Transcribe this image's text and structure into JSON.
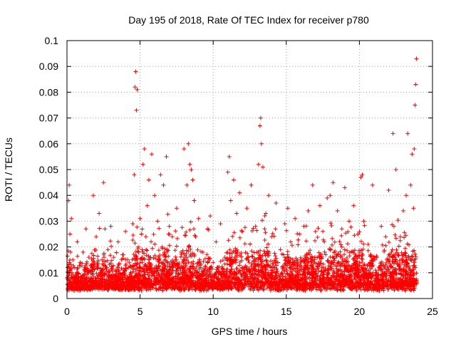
{
  "chart_data": {
    "type": "scatter",
    "title": "Day 195 of 2018, Rate Of TEC Index for receiver p780",
    "xlabel": "GPS time / hours",
    "ylabel": "ROTI / TECUs",
    "xlim": [
      0,
      25
    ],
    "ylim": [
      0,
      0.1
    ],
    "x_ticks": [
      "0",
      "5",
      "10",
      "15",
      "20",
      "25"
    ],
    "y_ticks": [
      "0",
      "0.01",
      "0.02",
      "0.03",
      "0.04",
      "0.05",
      "0.06",
      "0.07",
      "0.08",
      "0.09",
      "0.1"
    ],
    "grid": true,
    "marker": "+",
    "series": [
      {
        "name": "ROTI",
        "color": "#ff0000",
        "x": [
          0.05,
          0.1,
          0.15,
          0.2,
          0.25,
          0.3,
          0.4,
          0.5,
          0.7,
          0.9,
          1.1,
          1.3,
          1.5,
          1.8,
          2.0,
          2.2,
          2.4,
          2.5,
          2.6,
          2.8,
          3.0,
          3.2,
          3.5,
          3.8,
          4.0,
          4.2,
          4.5,
          4.6,
          4.65,
          4.7,
          4.75,
          4.8,
          4.9,
          5.0,
          5.1,
          5.2,
          5.3,
          5.4,
          5.5,
          5.6,
          5.8,
          6.0,
          6.2,
          6.4,
          6.5,
          6.6,
          6.8,
          7.0,
          7.2,
          7.5,
          7.8,
          8.0,
          8.2,
          8.3,
          8.4,
          8.5,
          8.6,
          8.7,
          8.8,
          9.0,
          9.3,
          9.6,
          9.8,
          10.0,
          10.2,
          10.5,
          10.8,
          11.0,
          11.1,
          11.2,
          11.4,
          11.6,
          11.8,
          12.0,
          12.3,
          12.6,
          12.9,
          13.1,
          13.2,
          13.25,
          13.3,
          13.4,
          13.6,
          13.8,
          14.0,
          14.3,
          14.6,
          14.9,
          15.1,
          15.3,
          15.6,
          15.9,
          16.2,
          16.5,
          16.8,
          17.0,
          17.3,
          17.6,
          17.8,
          18.0,
          18.2,
          18.5,
          18.8,
          19.0,
          19.3,
          19.6,
          19.9,
          20.1,
          20.2,
          20.3,
          20.6,
          20.9,
          21.2,
          21.5,
          21.8,
          22.0,
          22.2,
          22.3,
          22.5,
          22.8,
          23.0,
          23.2,
          23.3,
          23.5,
          23.6,
          23.7,
          23.75,
          23.8,
          23.85,
          23.9
        ],
        "y": [
          0.012,
          0.038,
          0.044,
          0.025,
          0.018,
          0.031,
          0.015,
          0.012,
          0.022,
          0.014,
          0.018,
          0.027,
          0.016,
          0.04,
          0.024,
          0.033,
          0.015,
          0.045,
          0.027,
          0.019,
          0.028,
          0.016,
          0.022,
          0.017,
          0.026,
          0.012,
          0.029,
          0.048,
          0.082,
          0.088,
          0.073,
          0.081,
          0.018,
          0.031,
          0.025,
          0.052,
          0.058,
          0.024,
          0.036,
          0.046,
          0.056,
          0.04,
          0.03,
          0.048,
          0.02,
          0.044,
          0.055,
          0.028,
          0.024,
          0.035,
          0.018,
          0.058,
          0.044,
          0.06,
          0.052,
          0.05,
          0.046,
          0.038,
          0.024,
          0.031,
          0.018,
          0.027,
          0.032,
          0.014,
          0.022,
          0.029,
          0.016,
          0.049,
          0.055,
          0.038,
          0.046,
          0.033,
          0.041,
          0.026,
          0.035,
          0.044,
          0.028,
          0.052,
          0.067,
          0.07,
          0.06,
          0.051,
          0.033,
          0.04,
          0.024,
          0.037,
          0.019,
          0.029,
          0.035,
          0.022,
          0.031,
          0.025,
          0.028,
          0.034,
          0.044,
          0.026,
          0.036,
          0.022,
          0.039,
          0.04,
          0.045,
          0.034,
          0.027,
          0.043,
          0.03,
          0.036,
          0.025,
          0.047,
          0.048,
          0.03,
          0.021,
          0.044,
          0.016,
          0.028,
          0.024,
          0.042,
          0.018,
          0.064,
          0.05,
          0.024,
          0.034,
          0.04,
          0.064,
          0.044,
          0.056,
          0.035,
          0.058,
          0.075,
          0.083,
          0.093
        ]
      }
    ]
  }
}
